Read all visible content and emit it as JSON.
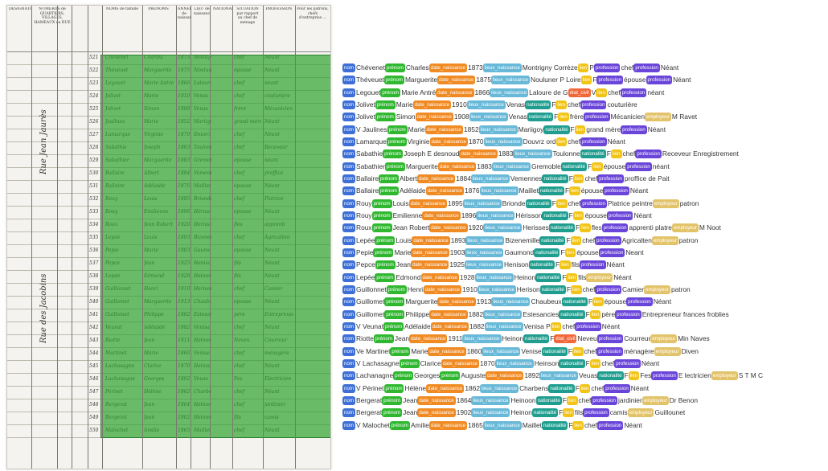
{
  "colors": {
    "nom": "#3d6fd6",
    "prénom": "#2fb82f",
    "date_naissance": "#f08a23",
    "lieux_naissance": "#68b8d8",
    "nationalité": "#1f9e8f",
    "lien": "#f2c417",
    "profession": "#6a45d9",
    "employeur": "#e3c36a",
    "état_civil": "#f0683a",
    "overlay": "#28a028"
  },
  "sheet": {
    "headers": [
      "DÉSIGNATION",
      "NUMÉROS de QUARTIERS, VILLAGES, HAMEAUX ou RUE",
      "NOMS de famille",
      "PRÉNOMS",
      "ANNÉE de naissance",
      "LIEU de naissance",
      "NATIONALITÉ",
      "SITUATION par rapport au chef de ménage",
      "PROFESSION",
      "Pour les patrons, chefs d'entreprise ..."
    ],
    "side_text": [
      "Rue Jean Jaurès",
      "Rue des Jacobins"
    ],
    "rows": [
      {
        "n": "521",
        "nom": "Chevenet",
        "prenom": "Charles",
        "an": "1873",
        "lieu": "Montigny",
        "sit": "chef",
        "prof": "Néant"
      },
      {
        "n": "522",
        "nom": "Théveuet",
        "prenom": "Marguerite",
        "an": "1875",
        "lieu": "Nouluner",
        "sit": "épouse",
        "prof": "Néant"
      },
      {
        "n": "523",
        "nom": "Legouet",
        "prenom": "Marie Antré",
        "an": "1866",
        "lieu": "Laloure",
        "sit": "chef",
        "prof": "néant"
      },
      {
        "n": "524",
        "nom": "Jolivet",
        "prenom": "Marie",
        "an": "1910",
        "lieu": "Venas",
        "sit": "chef",
        "prof": "couturière"
      },
      {
        "n": "525",
        "nom": "Jolivet",
        "prenom": "Simon",
        "an": "1908",
        "lieu": "Venas",
        "sit": "frère",
        "prof": "Mécanicien"
      },
      {
        "n": "526",
        "nom": "Jaulines",
        "prenom": "Marie",
        "an": "1852",
        "lieu": "Mariigoy",
        "sit": "grand mère",
        "prof": "Néant"
      },
      {
        "n": "527",
        "nom": "Lamarque",
        "prenom": "Virginie",
        "an": "1870",
        "lieu": "Douvrz",
        "sit": "chef",
        "prof": "Néant"
      },
      {
        "n": "528",
        "nom": "Sabathie",
        "prenom": "Joseph",
        "an": "1883",
        "lieu": "Toulonne",
        "sit": "chef",
        "prof": "Receveur"
      },
      {
        "n": "529",
        "nom": "Sabathier",
        "prenom": "Marguerite",
        "an": "1883",
        "lieu": "Gremoble",
        "sit": "épouse",
        "prof": "néant"
      },
      {
        "n": "530",
        "nom": "Ballaire",
        "prenom": "Albert",
        "an": "1884",
        "lieu": "Vemennes",
        "sit": "chef",
        "prof": "proffice"
      },
      {
        "n": "531",
        "nom": "Ballaire",
        "prenom": "Adélaide",
        "an": "1876",
        "lieu": "Maillet",
        "sit": "épouse",
        "prof": "Néant"
      },
      {
        "n": "532",
        "nom": "Rouy",
        "prenom": "Louis",
        "an": "1895",
        "lieu": "Brionde",
        "sit": "chef",
        "prof": "Platrice"
      },
      {
        "n": "533",
        "nom": "Rouy",
        "prenom": "Emilienne",
        "an": "1896",
        "lieu": "Hérisson",
        "sit": "épouse",
        "prof": "Néant"
      },
      {
        "n": "534",
        "nom": "Roux",
        "prenom": "Jean Robert",
        "an": "1920",
        "lieu": "Herisses",
        "sit": "fles",
        "prof": "apprenti"
      },
      {
        "n": "535",
        "nom": "Lepée",
        "prenom": "Louis",
        "an": "1893",
        "lieu": "Bizenemille",
        "sit": "chef",
        "prof": "Agricalten"
      },
      {
        "n": "536",
        "nom": "Pepie",
        "prenom": "Marie",
        "an": "1903",
        "lieu": "Gaumond",
        "sit": "épouse",
        "prof": "Neant"
      },
      {
        "n": "537",
        "nom": "Pepce",
        "prenom": "Jean",
        "an": "1925",
        "lieu": "Henison",
        "sit": "fils",
        "prof": "Néant"
      },
      {
        "n": "538",
        "nom": "Lepée",
        "prenom": "Edmond",
        "an": "1928",
        "lieu": "Heinon",
        "sit": "fils",
        "prof": "Néant"
      },
      {
        "n": "539",
        "nom": "Guillonnet",
        "prenom": "Henri",
        "an": "1910",
        "lieu": "Herison",
        "sit": "chef",
        "prof": "Camier"
      },
      {
        "n": "540",
        "nom": "Guillomet",
        "prenom": "Marguerite",
        "an": "1913",
        "lieu": "Chaubeux",
        "sit": "épouse",
        "prof": "Néant"
      },
      {
        "n": "541",
        "nom": "Guillomet",
        "prenom": "Philippe",
        "an": "1882",
        "lieu": "Estesancies",
        "sit": "père",
        "prof": "Entrepreneur"
      },
      {
        "n": "542",
        "nom": "Veunat",
        "prenom": "Adélaide",
        "an": "1882",
        "lieu": "Venisa",
        "sit": "chef",
        "prof": "Néant"
      },
      {
        "n": "543",
        "nom": "Riotte",
        "prenom": "Jean",
        "an": "1911",
        "lieu": "Heinon",
        "sit": "Neveu",
        "prof": "Courreur"
      },
      {
        "n": "544",
        "nom": "Martinet",
        "prenom": "Marie",
        "an": "1860",
        "lieu": "Venise",
        "sit": "chef",
        "prof": "ménagère"
      },
      {
        "n": "545",
        "nom": "Lachasagne",
        "prenom": "Clarice",
        "an": "1870",
        "lieu": "Heinson",
        "sit": "chef",
        "prof": "Néant"
      },
      {
        "n": "546",
        "nom": "Lachanagne",
        "prenom": "Georges",
        "an": "1892",
        "lieu": "Veuas",
        "sit": "Fes",
        "prof": "Electricien"
      },
      {
        "n": "547",
        "nom": "Périnet",
        "prenom": "Hélène",
        "an": "1862",
        "lieu": "Charbens",
        "sit": "chef",
        "prof": "Néant"
      },
      {
        "n": "548",
        "nom": "Bergerat",
        "prenom": "Jean",
        "an": "1864",
        "lieu": "Heinoon",
        "sit": "chef",
        "prof": "jardinier"
      },
      {
        "n": "549",
        "nom": "Bergerat",
        "prenom": "Jean",
        "an": "1902",
        "lieu": "Heinon",
        "sit": "fils",
        "prof": "camis"
      },
      {
        "n": "550",
        "nom": "Malochet",
        "prenom": "Amilie",
        "an": "1865",
        "lieu": "Maillet",
        "sit": "chef",
        "prof": "Néant"
      }
    ]
  },
  "records": [
    [
      [
        "nom",
        "Chévenet"
      ],
      [
        "prénom",
        "Charles"
      ],
      [
        "date_naissance",
        "1873"
      ],
      [
        "lieux_naissance",
        "Montrigny Corrèze"
      ],
      [
        "lien",
        "P"
      ],
      [
        "profession",
        "chef"
      ],
      [
        "profession",
        "Néant"
      ]
    ],
    [
      [
        "nom",
        "Théveuet"
      ],
      [
        "prénom",
        "Marguerite"
      ],
      [
        "date_naissance",
        "1875"
      ],
      [
        "lieux_naissance",
        "Nouluner P Loire"
      ],
      [
        "lien",
        "F"
      ],
      [
        "profession",
        "épouse"
      ],
      [
        "profession",
        "Néant"
      ]
    ],
    [
      [
        "nom",
        "Legouet"
      ],
      [
        "prénom",
        "Marie Antré"
      ],
      [
        "date_naissance",
        "1866"
      ],
      [
        "lieux_naissance",
        "Laloure de G"
      ],
      [
        "état_civil",
        "V"
      ],
      [
        "lien",
        "chef"
      ],
      [
        "profession",
        "néant"
      ]
    ],
    [
      [
        "nom",
        "Jolivet"
      ],
      [
        "prénom",
        "Marie"
      ],
      [
        "date_naissance",
        "1910"
      ],
      [
        "lieux_naissance",
        "Venas"
      ],
      [
        "nationalité",
        "F"
      ],
      [
        "lien",
        "chef"
      ],
      [
        "profession",
        "couturière"
      ]
    ],
    [
      [
        "nom",
        "Jolivet"
      ],
      [
        "prénom",
        "Simon"
      ],
      [
        "date_naissance",
        "1908"
      ],
      [
        "lieux_naissance",
        "Venas"
      ],
      [
        "nationalité",
        "F"
      ],
      [
        "lien",
        "frère"
      ],
      [
        "profession",
        "Mécanicien"
      ],
      [
        "employeur",
        "M Ravet"
      ]
    ],
    [
      [
        "nom",
        "V Jaulines"
      ],
      [
        "prénom",
        "Marie"
      ],
      [
        "date_naissance",
        "1852"
      ],
      [
        "lieux_naissance",
        "Mariigoy"
      ],
      [
        "nationalité",
        "F"
      ],
      [
        "lien",
        "grand mère"
      ],
      [
        "profession",
        "Néant"
      ]
    ],
    [
      [
        "nom",
        "Lamarque"
      ],
      [
        "prénom",
        "Virginie"
      ],
      [
        "date_naissance",
        "1870"
      ],
      [
        "lieux_naissance",
        "Douvrz ord"
      ],
      [
        "lien",
        "chef"
      ],
      [
        "profession",
        "Néant"
      ]
    ],
    [
      [
        "nom",
        "Sabathie"
      ],
      [
        "prénom",
        "Joseph E desnoud"
      ],
      [
        "date_naissance",
        "1883"
      ],
      [
        "lieux_naissance",
        "Toulonne"
      ],
      [
        "nationalité",
        "F"
      ],
      [
        "lien",
        "chef"
      ],
      [
        "profession",
        "Receveur Enregistrement"
      ]
    ],
    [
      [
        "nom",
        "Sabathier"
      ],
      [
        "prénom",
        "Marguerite"
      ],
      [
        "date_naissance",
        "1883"
      ],
      [
        "lieux_naissance",
        "Gremoble"
      ],
      [
        "nationalité",
        "F"
      ],
      [
        "lien",
        "épouse"
      ],
      [
        "profession",
        "néant"
      ]
    ],
    [
      [
        "nom",
        "Ballaire"
      ],
      [
        "prénom",
        "Albert"
      ],
      [
        "date_naissance",
        "1884"
      ],
      [
        "lieux_naissance",
        "Vemennes"
      ],
      [
        "nationalité",
        "F"
      ],
      [
        "lien",
        "chef"
      ],
      [
        "profession",
        "proffice de Pait"
      ]
    ],
    [
      [
        "nom",
        "Ballaire"
      ],
      [
        "prénom",
        "Adélaide"
      ],
      [
        "date_naissance",
        "1876"
      ],
      [
        "lieux_naissance",
        "Maillet"
      ],
      [
        "nationalité",
        "F"
      ],
      [
        "lien",
        "épouse"
      ],
      [
        "profession",
        "Néant"
      ]
    ],
    [
      [
        "nom",
        "Rouy"
      ],
      [
        "prénom",
        "Louis"
      ],
      [
        "date_naissance",
        "1895"
      ],
      [
        "lieux_naissance",
        "Brionde"
      ],
      [
        "nationalité",
        "F"
      ],
      [
        "lien",
        "chef"
      ],
      [
        "profession",
        "Platrice peintre"
      ],
      [
        "employeur",
        "patron"
      ]
    ],
    [
      [
        "nom",
        "Rouy"
      ],
      [
        "prénom",
        "Emilienne"
      ],
      [
        "date_naissance",
        "1896"
      ],
      [
        "lieux_naissance",
        "Hérisson"
      ],
      [
        "nationalité",
        "F"
      ],
      [
        "lien",
        "épouse"
      ],
      [
        "profession",
        "Néant"
      ]
    ],
    [
      [
        "nom",
        "Roux"
      ],
      [
        "prénom",
        "Jean Robert"
      ],
      [
        "date_naissance",
        "1920"
      ],
      [
        "lieux_naissance",
        "Herisses"
      ],
      [
        "nationalité",
        "F"
      ],
      [
        "lien",
        "fles"
      ],
      [
        "profession",
        "apprenti platre"
      ],
      [
        "employeur",
        "M Noot"
      ]
    ],
    [
      [
        "nom",
        "Lepée"
      ],
      [
        "prénom",
        "Louis"
      ],
      [
        "date_naissance",
        "1893"
      ],
      [
        "lieux_naissance",
        "Bizenemille"
      ],
      [
        "nationalité",
        "F"
      ],
      [
        "lien",
        "chef"
      ],
      [
        "profession",
        "Agricalten"
      ],
      [
        "employeur",
        "patron"
      ]
    ],
    [
      [
        "nom",
        "Pepie"
      ],
      [
        "prénom",
        "Marie"
      ],
      [
        "date_naissance",
        "1903"
      ],
      [
        "lieux_naissance",
        "Gaumond"
      ],
      [
        "nationalité",
        "F"
      ],
      [
        "lien",
        "épouse"
      ],
      [
        "profession",
        "Neant"
      ]
    ],
    [
      [
        "nom",
        "Pepce"
      ],
      [
        "prénom",
        "Jean"
      ],
      [
        "date_naissance",
        "1925"
      ],
      [
        "lieux_naissance",
        "Henison"
      ],
      [
        "nationalité",
        "F"
      ],
      [
        "lien",
        "fils"
      ],
      [
        "profession",
        "Néant"
      ]
    ],
    [
      [
        "nom",
        "Lepée"
      ],
      [
        "prénom",
        "Edmond"
      ],
      [
        "date_naissance",
        "1928"
      ],
      [
        "lieux_naissance",
        "Heinon"
      ],
      [
        "nationalité",
        "F"
      ],
      [
        "lien",
        "fils"
      ],
      [
        "employeur",
        "Néant"
      ]
    ],
    [
      [
        "nom",
        "Guillonnet"
      ],
      [
        "prénom",
        "Henri"
      ],
      [
        "date_naissance",
        "1910"
      ],
      [
        "lieux_naissance",
        "Herison"
      ],
      [
        "nationalité",
        "F"
      ],
      [
        "lien",
        "chef"
      ],
      [
        "profession",
        "Camier"
      ],
      [
        "employeur",
        "patron"
      ]
    ],
    [
      [
        "nom",
        "Guillomet"
      ],
      [
        "prénom",
        "Marguerite"
      ],
      [
        "date_naissance",
        "1913"
      ],
      [
        "lieux_naissance",
        "Chaubeux"
      ],
      [
        "nationalité",
        "F"
      ],
      [
        "lien",
        "épouse"
      ],
      [
        "profession",
        "Néant"
      ]
    ],
    [
      [
        "nom",
        "Guillomet"
      ],
      [
        "prénom",
        "Philippe"
      ],
      [
        "date_naissance",
        "1882"
      ],
      [
        "lieux_naissance",
        "Estesancies"
      ],
      [
        "nationalité",
        "F"
      ],
      [
        "lien",
        "père"
      ],
      [
        "profession",
        "Entrepreneur frances froblies"
      ]
    ],
    [
      [
        "nom",
        "V Veunat"
      ],
      [
        "prénom",
        "Adélaide"
      ],
      [
        "date_naissance",
        "1882"
      ],
      [
        "lieux_naissance",
        "Venisa P"
      ],
      [
        "lien",
        "chef"
      ],
      [
        "profession",
        "Néant"
      ]
    ],
    [
      [
        "nom",
        "Riotte"
      ],
      [
        "prénom",
        "Jean"
      ],
      [
        "date_naissance",
        "1911"
      ],
      [
        "lieux_naissance",
        "Heinon"
      ],
      [
        "nationalité",
        "F"
      ],
      [
        "état_civil",
        "Neveu"
      ],
      [
        "profession",
        "Courreur"
      ],
      [
        "employeur",
        "Min Naves"
      ]
    ],
    [
      [
        "nom",
        "Ve Martinet"
      ],
      [
        "prénom",
        "Marie"
      ],
      [
        "date_naissance",
        "1860"
      ],
      [
        "lieux_naissance",
        "Venise"
      ],
      [
        "nationalité",
        "F"
      ],
      [
        "lien",
        "chef"
      ],
      [
        "profession",
        "ménagère"
      ],
      [
        "employeur",
        "Diven"
      ]
    ],
    [
      [
        "nom",
        "V Lachasagne"
      ],
      [
        "prénom",
        "Clarice"
      ],
      [
        "date_naissance",
        "1870"
      ],
      [
        "lieux_naissance",
        "Heinson"
      ],
      [
        "nationalité",
        "F"
      ],
      [
        "lien",
        "chef"
      ],
      [
        "profession",
        "Néant"
      ]
    ],
    [
      [
        "nom",
        "Lachanagne"
      ],
      [
        "prénom",
        "Georges"
      ],
      [
        "prénom",
        "Auguste"
      ],
      [
        "date_naissance",
        "1892"
      ],
      [
        "lieux_naissance",
        "Veuas"
      ],
      [
        "nationalité",
        "F"
      ],
      [
        "lien",
        "Fes"
      ],
      [
        "profession",
        "E lectricien"
      ],
      [
        "employeur",
        "S T M C"
      ]
    ],
    [
      [
        "nom",
        "V Périnet"
      ],
      [
        "prénom",
        "Hélène"
      ],
      [
        "date_naissance",
        "1862"
      ],
      [
        "lieux_naissance",
        "Charbens"
      ],
      [
        "nationalité",
        "F"
      ],
      [
        "lien",
        "chef"
      ],
      [
        "profession",
        "Néant"
      ]
    ],
    [
      [
        "nom",
        "Bergerat"
      ],
      [
        "prénom",
        "Jean"
      ],
      [
        "date_naissance",
        "1864"
      ],
      [
        "lieux_naissance",
        "Heinoon"
      ],
      [
        "nationalité",
        "F"
      ],
      [
        "lien",
        "chef"
      ],
      [
        "profession",
        "jardinier"
      ],
      [
        "employeur",
        "Dr Benon"
      ]
    ],
    [
      [
        "nom",
        "Bergerat"
      ],
      [
        "prénom",
        "Jean"
      ],
      [
        "date_naissance",
        "1902"
      ],
      [
        "lieux_naissance",
        "Heinon"
      ],
      [
        "nationalité",
        "F"
      ],
      [
        "lien",
        "fils"
      ],
      [
        "profession",
        "camis"
      ],
      [
        "employeur",
        "Guillounet"
      ]
    ],
    [
      [
        "nom",
        "V Malochet"
      ],
      [
        "prénom",
        "Amilie"
      ],
      [
        "date_naissance",
        "1865"
      ],
      [
        "lieux_naissance",
        "Maillet"
      ],
      [
        "nationalité",
        "F"
      ],
      [
        "lien",
        "chef"
      ],
      [
        "profession",
        "Néant"
      ]
    ]
  ]
}
